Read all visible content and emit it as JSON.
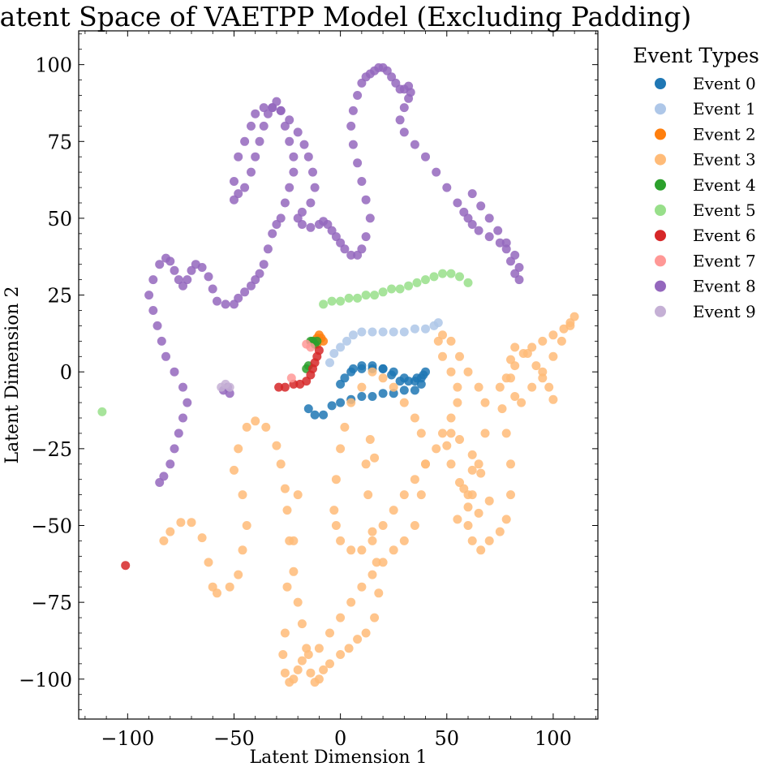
{
  "chart_data": {
    "type": "scatter",
    "title": "Latent Space of VAETPP Model (Excluding Padding)",
    "xlabel": "Latent Dimension 1",
    "ylabel": "Latent Dimension 2",
    "xlim": [
      -123,
      121
    ],
    "ylim": [
      -113,
      111
    ],
    "xticks": [
      -100,
      -50,
      0,
      50,
      100
    ],
    "yticks": [
      -100,
      -75,
      -50,
      -25,
      0,
      25,
      50,
      75,
      100
    ],
    "xtick_labels": [
      "−100",
      "−50",
      "0",
      "50",
      "100"
    ],
    "ytick_labels": [
      "−100",
      "−75",
      "−50",
      "−25",
      "0",
      "25",
      "50",
      "75",
      "100"
    ],
    "grid": false,
    "legend": {
      "title": "Event Types",
      "placement": "outside-right-top"
    },
    "series": [
      {
        "name": "Event 0",
        "color": "#1f77b4",
        "x": [
          -15,
          -12,
          -8,
          -4,
          0,
          5,
          10,
          15,
          20,
          25,
          30,
          35,
          38,
          39,
          36,
          32,
          28,
          24,
          20,
          15,
          10,
          5,
          0,
          2,
          6,
          10,
          15,
          20,
          25,
          30,
          35,
          38,
          40
        ],
        "y": [
          -12,
          -14,
          -14,
          -11,
          -10,
          -9,
          -8,
          -8,
          -7,
          -7,
          -6,
          -6,
          -4,
          -1,
          -2,
          -3,
          -3,
          -1,
          1,
          1,
          1,
          0,
          -4,
          -2,
          1,
          2,
          2,
          1,
          0,
          -2,
          -3,
          -2,
          0
        ]
      },
      {
        "name": "Event 1",
        "color": "#aec7e8",
        "x": [
          -5,
          -3,
          0,
          3,
          6,
          10,
          15,
          20,
          25,
          30,
          35,
          40,
          44,
          46
        ],
        "y": [
          3,
          6,
          8,
          10,
          12,
          13,
          13,
          13,
          13,
          13,
          14,
          14,
          15,
          16
        ]
      },
      {
        "name": "Event 2",
        "color": "#ff7f0e",
        "x": [
          -12,
          -11,
          -10,
          -9,
          -8,
          -11
        ],
        "y": [
          10,
          11,
          12,
          11,
          10,
          9
        ]
      },
      {
        "name": "Event 3",
        "color": "#ffbb78",
        "x": [
          -83,
          -80,
          -75,
          -70,
          -65,
          -62,
          -60,
          -58,
          -52,
          -48,
          -46,
          -44,
          -46,
          -50,
          -48,
          -44,
          -40,
          -35,
          -30,
          -28,
          -26,
          -25,
          -24,
          -22,
          -20,
          -18,
          -16,
          -14,
          -12,
          -10,
          -8,
          -5,
          0,
          4,
          8,
          12,
          16,
          18,
          17,
          15,
          13,
          12,
          14,
          16,
          -20,
          -22,
          -25,
          -26,
          -27,
          -26,
          -24,
          -22,
          -20,
          -18,
          -15,
          -10,
          -5,
          0,
          5,
          10,
          15,
          20,
          25,
          30,
          35,
          38,
          40,
          38,
          35,
          30,
          25,
          20,
          15,
          10,
          5,
          2,
          0,
          -2,
          -3,
          -2,
          0,
          5,
          10,
          15,
          20,
          25,
          30,
          35,
          40,
          45,
          48,
          52,
          55,
          55,
          52,
          48,
          46,
          48,
          52,
          56,
          60,
          65,
          68,
          68,
          65,
          62,
          60,
          62,
          66,
          70,
          75,
          78,
          80,
          80,
          78,
          76,
          75,
          78,
          82,
          86,
          90,
          95,
          100,
          105,
          108,
          110,
          108,
          104,
          100,
          95,
          90,
          85,
          82,
          80,
          80,
          82,
          88,
          92,
          95,
          98,
          100,
          60,
          56,
          52,
          50,
          52,
          56,
          62,
          66,
          60,
          55,
          65,
          70,
          58,
          62
        ],
        "y": [
          -55,
          -52,
          -49,
          -49,
          -54,
          -62,
          -70,
          -72,
          -70,
          -66,
          -58,
          -50,
          -40,
          -32,
          -25,
          -18,
          -16,
          -18,
          -24,
          -30,
          -38,
          -45,
          -55,
          -65,
          -75,
          -82,
          -90,
          -98,
          -101,
          -100,
          -97,
          -95,
          -92,
          -90,
          -87,
          -85,
          -80,
          -72,
          -62,
          -52,
          -40,
          -30,
          -22,
          -28,
          -40,
          -55,
          -70,
          -85,
          -92,
          -98,
          -101,
          -100,
          -97,
          -94,
          -92,
          -90,
          -85,
          -80,
          -75,
          -70,
          -66,
          -62,
          -58,
          -55,
          -50,
          -40,
          -30,
          -20,
          -15,
          -10,
          -5,
          -2,
          0,
          -5,
          -10,
          -18,
          -25,
          -35,
          -45,
          -50,
          -55,
          -58,
          -58,
          -55,
          -50,
          -45,
          -40,
          -35,
          -30,
          -25,
          -20,
          -15,
          -10,
          -5,
          0,
          5,
          10,
          12,
          10,
          5,
          0,
          -5,
          -10,
          -20,
          -30,
          -40,
          -50,
          -55,
          -58,
          -55,
          -52,
          -48,
          -40,
          -30,
          -20,
          -12,
          -5,
          -2,
          2,
          6,
          8,
          10,
          12,
          14,
          16,
          18,
          15,
          10,
          5,
          0,
          -5,
          -10,
          -8,
          -2,
          4,
          8,
          6,
          2,
          -2,
          -5,
          -9,
          -40,
          -36,
          -30,
          -24,
          -20,
          -22,
          -27,
          -33,
          -44,
          -48,
          -46,
          -42,
          -38,
          -32
        ]
      },
      {
        "name": "Event 4",
        "color": "#2ca02c",
        "x": [
          -14,
          -13,
          -12,
          -11,
          -16,
          -15
        ],
        "y": [
          10,
          10,
          9,
          10,
          1,
          2
        ]
      },
      {
        "name": "Event 5",
        "color": "#98df8a",
        "x": [
          -8,
          -4,
          0,
          4,
          8,
          12,
          16,
          20,
          24,
          28,
          32,
          36,
          40,
          44,
          48,
          52,
          56,
          60,
          -112
        ],
        "y": [
          22,
          23,
          23,
          24,
          24,
          25,
          25,
          26,
          27,
          27,
          28,
          29,
          30,
          31,
          32,
          32,
          31,
          29,
          -13
        ]
      },
      {
        "name": "Event 6",
        "color": "#d62728",
        "x": [
          -29,
          -26,
          -22,
          -19,
          -16,
          -14,
          -13,
          -12,
          -11,
          -10,
          -101
        ],
        "y": [
          -5,
          -5,
          -4,
          -4,
          -3,
          -1,
          1,
          3,
          5,
          7,
          -63
        ]
      },
      {
        "name": "Event 7",
        "color": "#ff9896",
        "x": [
          -23,
          -16,
          -14
        ],
        "y": [
          -2,
          9,
          8
        ]
      },
      {
        "name": "Event 8",
        "color": "#9467bd",
        "x": [
          -85,
          -83,
          -80,
          -78,
          -76,
          -74,
          -72,
          -74,
          -78,
          -82,
          -84,
          -86,
          -88,
          -90,
          -88,
          -85,
          -82,
          -80,
          -78,
          -76,
          -74,
          -72,
          -70,
          -68,
          -65,
          -62,
          -60,
          -58,
          -54,
          -50,
          -48,
          -45,
          -42,
          -40,
          -38,
          -36,
          -34,
          -32,
          -30,
          -28,
          -26,
          -24,
          -22,
          -22,
          -24,
          -26,
          -28,
          -30,
          -32,
          -34,
          -36,
          -38,
          -40,
          -42,
          -45,
          -48,
          -50,
          -50,
          -48,
          -45,
          -42,
          -40,
          -36,
          -32,
          -28,
          -24,
          -20,
          -17,
          -15,
          -13,
          -12,
          -14,
          -18,
          -20,
          -18,
          -14,
          -10,
          -8,
          -6,
          -4,
          -2,
          0,
          2,
          5,
          8,
          10,
          12,
          14,
          12,
          10,
          8,
          6,
          5,
          6,
          8,
          10,
          12,
          14,
          16,
          18,
          20,
          22,
          24,
          26,
          28,
          30,
          32,
          33,
          32,
          30,
          28,
          30,
          35,
          40,
          45,
          50,
          55,
          58,
          60,
          62,
          65,
          70,
          75,
          78,
          80,
          82,
          84,
          84,
          82,
          78,
          74,
          70,
          66,
          62,
          -53,
          -55,
          -52
        ],
        "y": [
          -36,
          -34,
          -30,
          -25,
          -20,
          -15,
          -10,
          -5,
          0,
          5,
          10,
          15,
          20,
          25,
          30,
          35,
          37,
          36,
          33,
          30,
          28,
          30,
          33,
          35,
          34,
          31,
          27,
          23,
          22,
          22,
          24,
          26,
          28,
          30,
          32,
          35,
          40,
          45,
          48,
          50,
          55,
          60,
          65,
          70,
          75,
          80,
          85,
          88,
          86,
          84,
          80,
          75,
          70,
          65,
          60,
          58,
          56,
          62,
          70,
          75,
          80,
          84,
          86,
          86,
          85,
          82,
          78,
          74,
          70,
          65,
          60,
          55,
          52,
          50,
          48,
          47,
          48,
          49,
          48,
          46,
          44,
          42,
          40,
          38,
          38,
          40,
          44,
          50,
          56,
          62,
          68,
          74,
          80,
          85,
          90,
          94,
          96,
          97,
          98,
          99,
          99,
          98,
          96,
          94,
          92,
          92,
          93,
          91,
          89,
          86,
          82,
          78,
          74,
          70,
          65,
          60,
          55,
          52,
          50,
          48,
          46,
          44,
          42,
          40,
          36,
          32,
          30,
          34,
          38,
          42,
          46,
          50,
          54,
          58,
          -5,
          -6,
          -7
        ]
      },
      {
        "name": "Event 9",
        "color": "#c5b0d5",
        "x": [
          -56,
          -52,
          -54
        ],
        "y": [
          -5,
          -5,
          -4
        ]
      }
    ]
  }
}
